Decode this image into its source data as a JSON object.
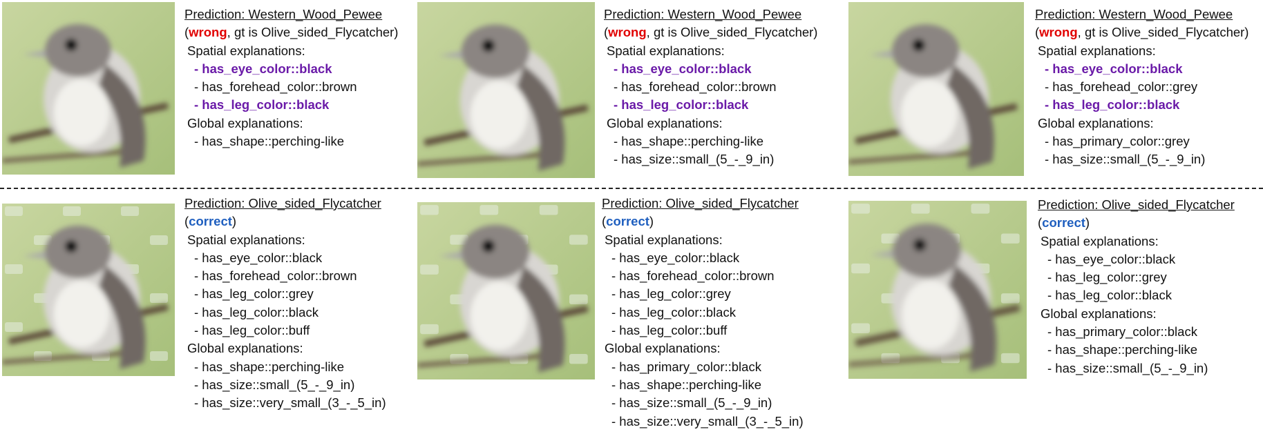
{
  "panels": [
    {
      "id": "top-1",
      "prediction": "Prediction: Western_Wood_Pewee",
      "status_open": "(",
      "status_word": "wrong",
      "status_rest": ", gt is Olive_sided_Flycatcher)",
      "spatial_header": "Spatial explanations:",
      "spatial": [
        {
          "text": "- has_eye_color::black",
          "highlight": true
        },
        {
          "text": "- has_forehead_color::brown",
          "highlight": false
        },
        {
          "text": "- has_leg_color::black",
          "highlight": true
        }
      ],
      "global_header": "Global explanations:",
      "global": [
        "- has_shape::perching-like"
      ]
    },
    {
      "id": "top-2",
      "prediction": "Prediction: Western_Wood_Pewee",
      "status_open": "(",
      "status_word": "wrong",
      "status_rest": ", gt is Olive_sided_Flycatcher)",
      "spatial_header": "Spatial explanations:",
      "spatial": [
        {
          "text": "- has_eye_color::black",
          "highlight": true
        },
        {
          "text": "- has_forehead_color::brown",
          "highlight": false
        },
        {
          "text": "- has_leg_color::black",
          "highlight": true
        }
      ],
      "global_header": "Global explanations:",
      "global": [
        "- has_shape::perching-like",
        "- has_size::small_(5_-_9_in)"
      ]
    },
    {
      "id": "top-3",
      "prediction": "Prediction: Western_Wood_Pewee",
      "status_open": "(",
      "status_word": "wrong",
      "status_rest": ", gt is Olive_sided_Flycatcher)",
      "spatial_header": "Spatial explanations:",
      "spatial": [
        {
          "text": "- has_eye_color::black",
          "highlight": true
        },
        {
          "text": "- has_forehead_color::grey",
          "highlight": false
        },
        {
          "text": "- has_leg_color::black",
          "highlight": true
        }
      ],
      "global_header": "Global explanations:",
      "global": [
        "- has_primary_color::grey",
        "- has_size::small_(5_-_9_in)"
      ]
    },
    {
      "id": "bottom-1",
      "prediction": "Prediction: Olive_sided_Flycatcher",
      "status_open": "(",
      "status_word": "correct",
      "status_rest": ")",
      "spatial_header": "Spatial explanations:",
      "spatial": [
        {
          "text": "- has_eye_color::black",
          "highlight": false
        },
        {
          "text": "- has_forehead_color::brown",
          "highlight": false
        },
        {
          "text": "- has_leg_color::grey",
          "highlight": false
        },
        {
          "text": "- has_leg_color::black",
          "highlight": false
        },
        {
          "text": "- has_leg_color::buff",
          "highlight": false
        }
      ],
      "global_header": "Global explanations:",
      "global": [
        "- has_shape::perching-like",
        "- has_size::small_(5_-_9_in)",
        "- has_size::very_small_(3_-_5_in)"
      ]
    },
    {
      "id": "bottom-2",
      "prediction": "Prediction: Olive_sided_Flycatcher",
      "status_open": "(",
      "status_word": "correct",
      "status_rest": ")",
      "spatial_header": "Spatial explanations:",
      "spatial": [
        {
          "text": "- has_eye_color::black",
          "highlight": false
        },
        {
          "text": "- has_forehead_color::brown",
          "highlight": false
        },
        {
          "text": "- has_leg_color::grey",
          "highlight": false
        },
        {
          "text": "- has_leg_color::black",
          "highlight": false
        },
        {
          "text": "- has_leg_color::buff",
          "highlight": false
        }
      ],
      "global_header": "Global explanations:",
      "global": [
        "- has_primary_color::black",
        "- has_shape::perching-like",
        "- has_size::small_(5_-_9_in)",
        "- has_size::very_small_(3_-_5_in)"
      ]
    },
    {
      "id": "bottom-3",
      "prediction": "Prediction: Olive_sided_Flycatcher",
      "status_open": "(",
      "status_word": "correct",
      "status_rest": ")",
      "spatial_header": "Spatial explanations:",
      "spatial": [
        {
          "text": "- has_eye_color::black",
          "highlight": false
        },
        {
          "text": "- has_leg_color::grey",
          "highlight": false
        },
        {
          "text": "- has_leg_color::black",
          "highlight": false
        }
      ],
      "global_header": "Global explanations:",
      "global": [
        "- has_primary_color::black",
        "- has_shape::perching-like",
        "- has_size::small_(5_-_9_in)"
      ]
    }
  ]
}
